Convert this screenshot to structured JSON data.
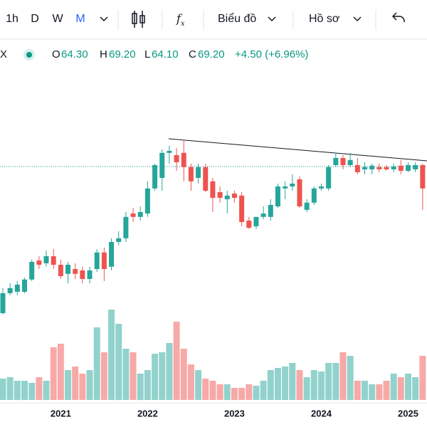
{
  "toolbar": {
    "intervals": [
      "1h",
      "D",
      "W",
      "M"
    ],
    "chart_menu": "Biểu đồ",
    "profile_menu": "Hồ sơ"
  },
  "legend": {
    "symbol": "X",
    "items": [
      {
        "key": "O",
        "value": "64.30"
      },
      {
        "key": "H",
        "value": "69.20"
      },
      {
        "key": "L",
        "value": "64.10"
      },
      {
        "key": "C",
        "value": "69.20"
      }
    ],
    "change": "+4.50 (+6.96%)"
  },
  "chart_data": {
    "type": "candlestick",
    "categories": [
      null,
      null,
      null,
      null,
      null,
      null,
      null,
      null,
      "2021",
      null,
      null,
      null,
      null,
      null,
      null,
      null,
      null,
      null,
      null,
      null,
      "2022",
      null,
      null,
      null,
      null,
      null,
      null,
      null,
      null,
      null,
      null,
      null,
      "2023",
      null,
      null,
      null,
      null,
      null,
      null,
      null,
      null,
      null,
      null,
      null,
      "2024",
      null,
      null,
      null,
      null,
      null,
      null,
      null,
      null,
      null,
      null,
      null,
      "2025",
      null,
      null
    ],
    "open": [
      17.7,
      24.7,
      25.2,
      25.2,
      29.5,
      36.2,
      35.2,
      37.7,
      34.7,
      31.5,
      33.2,
      32.7,
      29.7,
      33.2,
      39.0,
      34.0,
      42.7,
      44.0,
      52.7,
      51.5,
      52.7,
      61.5,
      65.2,
      74.0,
      73.2,
      74.0,
      69.0,
      65.2,
      69.0,
      64.0,
      60.2,
      57.7,
      59.7,
      59.0,
      50.2,
      48.2,
      51.5,
      51.5,
      55.2,
      61.5,
      62.2,
      64.7,
      54.0,
      56.5,
      61.5,
      61.5,
      69.7,
      72.2,
      69.7,
      69.7,
      68.2,
      68.2,
      69.0,
      69.0,
      68.2,
      69.5,
      67.7,
      68.2,
      69.7
    ],
    "high": [
      26.5,
      28.2,
      29.0,
      30.2,
      36.5,
      37.7,
      39.7,
      40.2,
      36.5,
      35.7,
      35.2,
      34.0,
      34.0,
      40.2,
      40.7,
      44.0,
      46.5,
      53.2,
      54.7,
      55.2,
      64.0,
      70.2,
      75.2,
      76.5,
      75.7,
      78.7,
      70.2,
      70.2,
      70.2,
      65.2,
      62.2,
      60.7,
      60.7,
      60.2,
      51.5,
      51.5,
      55.2,
      57.7,
      63.2,
      64.0,
      66.5,
      65.7,
      57.7,
      62.2,
      63.2,
      69.7,
      74.0,
      73.2,
      74.0,
      72.2,
      70.7,
      70.2,
      70.2,
      69.7,
      70.2,
      71.5,
      70.7,
      70.7,
      70.2
    ],
    "low": [
      17.2,
      24.0,
      24.0,
      24.7,
      29.0,
      33.2,
      34.0,
      33.2,
      29.7,
      28.2,
      29.7,
      28.2,
      28.2,
      32.2,
      29.0,
      32.7,
      41.5,
      42.7,
      49.7,
      50.2,
      51.5,
      60.7,
      60.7,
      70.2,
      67.7,
      64.0,
      60.7,
      63.2,
      60.2,
      53.2,
      56.5,
      52.7,
      56.5,
      48.2,
      47.2,
      47.2,
      50.7,
      50.2,
      54.7,
      57.7,
      60.7,
      54.7,
      53.2,
      55.7,
      60.7,
      60.7,
      69.0,
      68.2,
      69.0,
      66.5,
      66.5,
      66.5,
      67.2,
      67.7,
      67.2,
      66.5,
      67.2,
      67.2,
      54.0
    ],
    "close": [
      24.7,
      26.5,
      27.7,
      29.5,
      35.7,
      34.7,
      37.7,
      34.7,
      30.7,
      34.7,
      31.5,
      29.7,
      32.7,
      39.0,
      33.2,
      42.7,
      44.0,
      51.5,
      51.5,
      53.2,
      61.5,
      69.7,
      74.0,
      74.7,
      70.7,
      69.0,
      64.0,
      69.0,
      60.7,
      58.2,
      58.2,
      59.0,
      58.2,
      49.7,
      47.7,
      51.5,
      52.7,
      55.7,
      62.2,
      62.2,
      63.2,
      55.2,
      56.5,
      61.5,
      62.2,
      69.0,
      72.2,
      69.7,
      71.5,
      67.2,
      69.0,
      69.5,
      68.2,
      68.2,
      69.2,
      67.7,
      69.7,
      69.7,
      61.5
    ],
    "volume": [
      3.0,
      3.2,
      2.7,
      2.7,
      2.4,
      3.2,
      2.7,
      7.4,
      7.9,
      4.2,
      4.7,
      3.7,
      4.2,
      10.2,
      6.7,
      12.7,
      10.7,
      7.2,
      6.7,
      3.7,
      4.2,
      6.5,
      6.7,
      8.0,
      11.0,
      7.2,
      5.0,
      4.2,
      3.0,
      2.7,
      2.2,
      2.2,
      1.7,
      1.7,
      2.2,
      2.0,
      2.7,
      4.2,
      4.5,
      4.7,
      5.2,
      4.2,
      3.2,
      4.2,
      4.0,
      5.2,
      5.2,
      6.7,
      6.2,
      2.7,
      2.7,
      2.2,
      2.2,
      2.7,
      3.7,
      3.2,
      3.7,
      3.2,
      6.2
    ],
    "ylim": [
      15.2,
      102.7
    ],
    "volume_ylim": [
      0,
      15
    ],
    "up_color": "#26a69a",
    "down_color": "#ef5350"
  }
}
